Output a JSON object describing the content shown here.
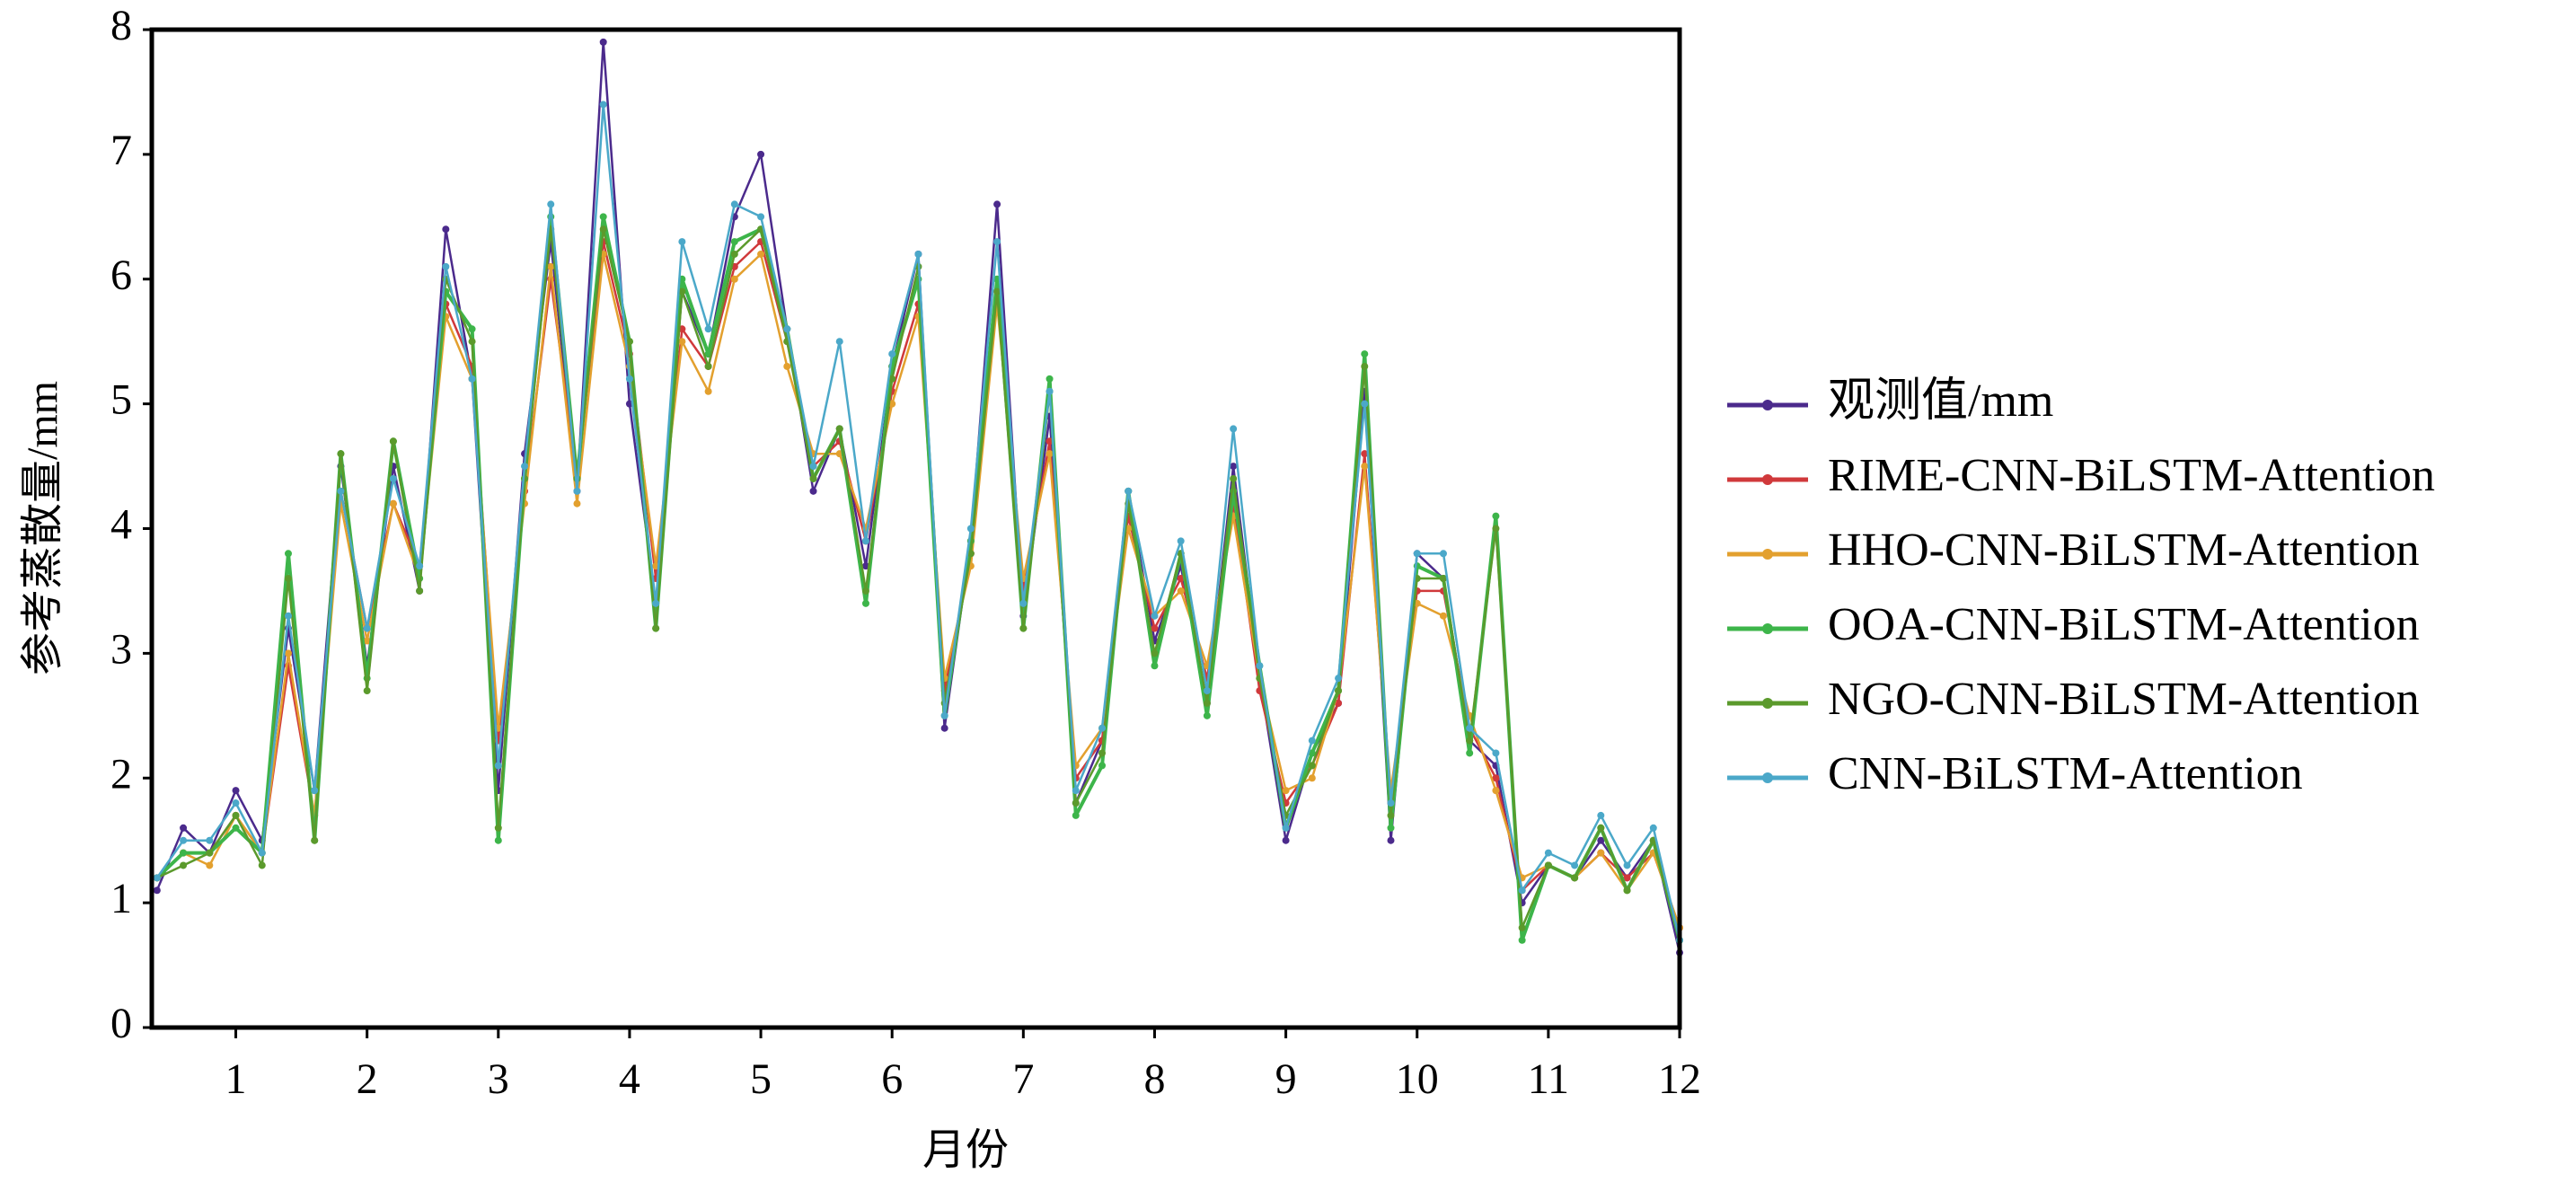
{
  "chart_data": {
    "type": "line",
    "xlabel": "月份",
    "ylabel": "参考蒸散量/mm",
    "xlim": [
      0.36,
      12
    ],
    "ylim": [
      0,
      8
    ],
    "xticks": [
      1,
      2,
      3,
      4,
      5,
      6,
      7,
      8,
      9,
      10,
      11,
      12
    ],
    "yticks": [
      0,
      1,
      2,
      3,
      4,
      5,
      6,
      7,
      8
    ],
    "grid": false,
    "legend": "right",
    "x": [
      0.4,
      0.6,
      0.8,
      1.0,
      1.2,
      1.4,
      1.6,
      1.8,
      2.0,
      2.2,
      2.4,
      2.6,
      2.8,
      3.0,
      3.2,
      3.4,
      3.6,
      3.8,
      4.0,
      4.2,
      4.4,
      4.6,
      4.8,
      5.0,
      5.2,
      5.4,
      5.6,
      5.8,
      6.0,
      6.2,
      6.4,
      6.6,
      6.8,
      7.0,
      7.2,
      7.4,
      7.6,
      7.8,
      8.0,
      8.2,
      8.4,
      8.6,
      8.8,
      9.0,
      9.2,
      9.4,
      9.6,
      9.8,
      10.0,
      10.2,
      10.4,
      10.6,
      10.8,
      11.0,
      11.2,
      11.4,
      11.6,
      11.8,
      12.0
    ],
    "series": [
      {
        "name": "观测值/mm",
        "color": "#4b2a8c",
        "values": [
          1.1,
          1.6,
          1.4,
          1.9,
          1.5,
          3.2,
          1.9,
          4.5,
          2.9,
          4.5,
          3.5,
          6.4,
          5.2,
          1.9,
          4.6,
          6.3,
          4.3,
          7.9,
          5.0,
          3.4,
          5.9,
          5.4,
          6.5,
          7.0,
          5.6,
          4.3,
          4.8,
          3.7,
          5.3,
          6.2,
          2.4,
          3.9,
          6.6,
          3.3,
          4.9,
          1.8,
          2.3,
          4.3,
          3.1,
          3.7,
          2.6,
          4.5,
          2.8,
          1.5,
          2.2,
          2.6,
          5.1,
          1.5,
          3.8,
          3.6,
          2.3,
          2.1,
          1.0,
          1.3,
          1.2,
          1.5,
          1.2,
          1.5,
          0.6
        ]
      },
      {
        "name": "RIME-CNN-BiLSTM-Attention",
        "color": "#d0393b",
        "values": [
          1.2,
          1.4,
          1.4,
          1.7,
          1.4,
          2.9,
          1.7,
          4.3,
          3.2,
          4.2,
          3.7,
          5.8,
          5.3,
          2.3,
          4.3,
          6.0,
          4.4,
          6.3,
          5.4,
          3.6,
          5.6,
          5.3,
          6.1,
          6.3,
          5.5,
          4.5,
          4.7,
          3.9,
          5.1,
          5.8,
          2.7,
          3.8,
          5.9,
          3.5,
          4.7,
          2.0,
          2.3,
          4.1,
          3.2,
          3.6,
          2.8,
          4.2,
          2.7,
          1.8,
          2.1,
          2.6,
          4.6,
          1.8,
          3.5,
          3.5,
          2.4,
          2.0,
          1.1,
          1.3,
          1.2,
          1.4,
          1.2,
          1.4,
          0.8
        ]
      },
      {
        "name": "HHO-CNN-BiLSTM-Attention",
        "color": "#e3a02e",
        "values": [
          1.2,
          1.4,
          1.3,
          1.7,
          1.4,
          3.0,
          1.7,
          4.2,
          3.1,
          4.2,
          3.6,
          5.7,
          5.2,
          2.4,
          4.2,
          6.1,
          4.2,
          6.2,
          5.3,
          3.7,
          5.5,
          5.1,
          6.0,
          6.2,
          5.3,
          4.6,
          4.6,
          4.0,
          5.0,
          5.7,
          2.8,
          3.7,
          5.8,
          3.6,
          4.6,
          2.1,
          2.4,
          4.0,
          3.3,
          3.5,
          2.9,
          4.1,
          2.8,
          1.9,
          2.0,
          2.7,
          4.5,
          1.9,
          3.4,
          3.3,
          2.5,
          1.9,
          1.2,
          1.3,
          1.2,
          1.4,
          1.1,
          1.4,
          0.8
        ]
      },
      {
        "name": "OOA-CNN-BiLSTM-Attention",
        "color": "#3db54a",
        "values": [
          1.2,
          1.4,
          1.4,
          1.6,
          1.4,
          3.8,
          1.5,
          4.6,
          2.8,
          4.7,
          3.6,
          5.9,
          5.6,
          1.5,
          4.4,
          6.5,
          4.4,
          6.5,
          5.5,
          3.2,
          6.0,
          5.4,
          6.3,
          6.4,
          5.6,
          4.4,
          4.8,
          3.4,
          5.3,
          6.0,
          2.5,
          3.9,
          6.0,
          3.2,
          5.2,
          1.7,
          2.1,
          4.3,
          2.9,
          3.8,
          2.5,
          4.3,
          2.9,
          1.6,
          2.2,
          2.7,
          5.4,
          1.6,
          3.7,
          3.6,
          2.2,
          4.1,
          0.7,
          1.3,
          1.2,
          1.6,
          1.1,
          1.5,
          0.7
        ]
      },
      {
        "name": "NGO-CNN-BiLSTM-Attention",
        "color": "#5b9a2c",
        "values": [
          1.2,
          1.3,
          1.4,
          1.7,
          1.3,
          3.6,
          1.5,
          4.6,
          2.7,
          4.7,
          3.5,
          6.0,
          5.5,
          1.6,
          4.4,
          6.4,
          4.4,
          6.4,
          5.5,
          3.2,
          5.9,
          5.3,
          6.2,
          6.4,
          5.5,
          4.4,
          4.8,
          3.5,
          5.2,
          6.1,
          2.6,
          3.8,
          5.9,
          3.2,
          5.1,
          1.8,
          2.2,
          4.2,
          3.0,
          3.8,
          2.6,
          4.4,
          2.8,
          1.7,
          2.1,
          2.7,
          5.3,
          1.7,
          3.6,
          3.6,
          2.3,
          4.0,
          0.8,
          1.3,
          1.2,
          1.6,
          1.1,
          1.5,
          0.7
        ]
      },
      {
        "name": "CNN-BiLSTM-Attention",
        "color": "#4ba8c9",
        "values": [
          1.2,
          1.5,
          1.5,
          1.8,
          1.4,
          3.3,
          1.9,
          4.3,
          3.2,
          4.4,
          3.7,
          6.1,
          5.2,
          2.1,
          4.5,
          6.6,
          4.3,
          7.4,
          5.2,
          3.4,
          6.3,
          5.6,
          6.6,
          6.5,
          5.6,
          4.5,
          5.5,
          3.9,
          5.4,
          6.2,
          2.5,
          4.0,
          6.3,
          3.4,
          5.1,
          1.9,
          2.4,
          4.3,
          3.3,
          3.9,
          2.7,
          4.8,
          2.9,
          1.6,
          2.3,
          2.8,
          5.0,
          1.8,
          3.8,
          3.8,
          2.4,
          2.2,
          1.1,
          1.4,
          1.3,
          1.7,
          1.3,
          1.6,
          0.7
        ]
      }
    ]
  }
}
